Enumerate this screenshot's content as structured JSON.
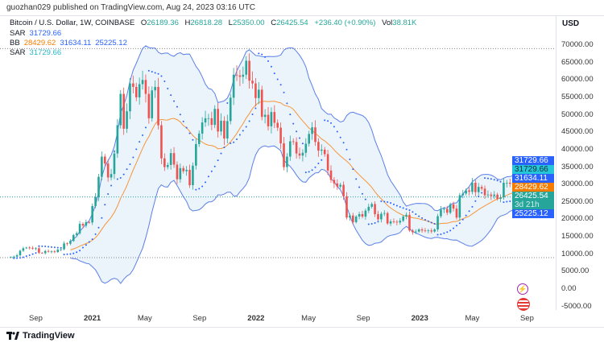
{
  "publisher_line": "guozhan029 published on TradingView.com, Aug 24, 2023 03:16 UTC",
  "legend": {
    "symbol": "Bitcoin / U.S. Dollar, 1W, COINBASE",
    "o_label": "O",
    "o": "26189.36",
    "h_label": "H",
    "h": "26818.28",
    "l_label": "L",
    "l": "25350.00",
    "c_label": "C",
    "c": "26425.54",
    "change": "+236.40 (+0.90%)",
    "vol_label": "Vol",
    "vol": "38.81K",
    "sar1_label": "SAR",
    "sar1": "31729.66",
    "bb_label": "BB",
    "bb_basis": "28429.62",
    "bb_upper": "31634.11",
    "bb_lower": "25225.12",
    "sar2_label": "SAR",
    "sar2": "31729.66"
  },
  "axis": {
    "currency": "USD",
    "price_labels": [
      "70000.00",
      "65000.00",
      "60000.00",
      "55000.00",
      "50000.00",
      "45000.00",
      "40000.00",
      "35000.00",
      "30000.00",
      "25000.00",
      "20000.00",
      "15000.00",
      "10000.00",
      "5000.00",
      "0.00",
      "-5000.00"
    ],
    "time_labels": [
      {
        "text": "Sep",
        "date": "2020-09-01",
        "bold": false
      },
      {
        "text": "2021",
        "date": "2021-01-01",
        "bold": true
      },
      {
        "text": "May",
        "date": "2021-05-01",
        "bold": false
      },
      {
        "text": "Sep",
        "date": "2021-09-01",
        "bold": false
      },
      {
        "text": "2022",
        "date": "2022-01-01",
        "bold": true
      },
      {
        "text": "May",
        "date": "2022-05-01",
        "bold": false
      },
      {
        "text": "Sep",
        "date": "2022-09-01",
        "bold": false
      },
      {
        "text": "2023",
        "date": "2023-01-01",
        "bold": true
      },
      {
        "text": "May",
        "date": "2023-05-01",
        "bold": false
      },
      {
        "text": "Sep",
        "date": "2023-09-01",
        "bold": false
      }
    ]
  },
  "badges": {
    "sar1": "31729.66",
    "sar2": "31729.66",
    "bb_upper": "31634.11",
    "bb_basis": "28429.62",
    "price": "26425.54",
    "countdown": "3d 21h",
    "bb_lower": "25225.12"
  },
  "colors": {
    "up": "#26a69a",
    "down": "#ef5350",
    "bb_line": "#5b7fe8",
    "bb_basis": "#f7953a",
    "bb_fill": "#e3effa",
    "sar": "#2962ff",
    "sar2": "#26c6da"
  },
  "logo_text": "TradingView",
  "icons": [
    "lightning-icon",
    "us-flag-icon"
  ],
  "chart_data": {
    "type": "candlestick",
    "interval": "1W",
    "first_week": "2020-07-06",
    "ylim": [
      -5000,
      72000
    ],
    "horizontal_lines": [
      69000,
      9000,
      26425.54
    ],
    "indicators": [
      "Bollinger Bands (20, 2)",
      "Parabolic SAR"
    ],
    "closes": [
      9200,
      9300,
      9700,
      11000,
      11700,
      11900,
      11800,
      11600,
      11700,
      10400,
      10300,
      10900,
      10700,
      10800,
      10600,
      11300,
      11400,
      13100,
      13000,
      13800,
      15500,
      16000,
      18700,
      18200,
      19200,
      19100,
      23800,
      26400,
      32200,
      38000,
      36000,
      32000,
      33000,
      38900,
      47000,
      56000,
      46000,
      51000,
      59000,
      58000,
      55000,
      58800,
      60000,
      56000,
      49000,
      57000,
      58000,
      47000,
      37500,
      35000,
      35600,
      39000,
      35700,
      31500,
      34700,
      33800,
      34200,
      29800,
      35400,
      41600,
      44600,
      47800,
      49000,
      49000,
      47100,
      51700,
      45200,
      48300,
      43200,
      48200,
      54900,
      61500,
      61300,
      60900,
      61500,
      65500,
      59800,
      59000,
      54800,
      57200,
      49400,
      50000,
      46700,
      50800,
      47700,
      46300,
      41800,
      35000,
      38000,
      42400,
      42200,
      38900,
      38300,
      39100,
      41700,
      44500,
      46400,
      42200,
      39700,
      40000,
      38700,
      34000,
      31300,
      30300,
      29400,
      29900,
      26600,
      20500,
      21100,
      19200,
      20800,
      21500,
      20800,
      22500,
      23600,
      24400,
      21500,
      20000,
      21600,
      21800,
      18800,
      19400,
      19300,
      19100,
      19600,
      20800,
      21300,
      16800,
      16300,
      16500,
      17100,
      16800,
      16700,
      16800,
      16500,
      17100,
      20900,
      22800,
      23000,
      21900,
      24300,
      23100,
      20500,
      26900,
      27400,
      28300,
      27900,
      30500,
      27800,
      29300,
      28800,
      26900,
      27100,
      26700,
      27100,
      25900,
      26300,
      30500,
      30500,
      30200,
      30300,
      29900,
      29300,
      29100,
      29400,
      26189.36,
      26425.54
    ]
  }
}
